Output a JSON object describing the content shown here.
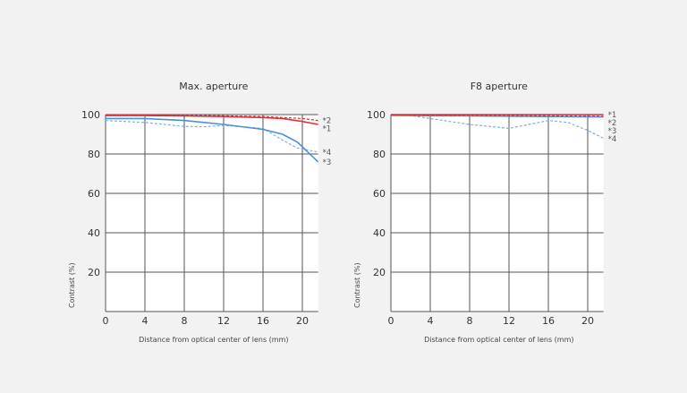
{
  "chart_data": [
    {
      "type": "line",
      "title": "Max. aperture",
      "xlabel": "Distance from optical center of lens (mm)",
      "ylabel": "Contrast (%)",
      "xlim": [
        0,
        21.6
      ],
      "ylim": [
        0,
        100
      ],
      "xticks": [
        0,
        4,
        8,
        12,
        16,
        20
      ],
      "yticks": [
        20,
        40,
        60,
        80,
        100
      ],
      "grid": true,
      "series": [
        {
          "name": "*1",
          "color": "#e0313a",
          "dash": false,
          "points": [
            [
              0,
              99.5
            ],
            [
              4,
              99.5
            ],
            [
              8,
              99.3
            ],
            [
              12,
              99
            ],
            [
              16,
              98.5
            ],
            [
              18,
              98
            ],
            [
              20,
              96.5
            ],
            [
              21.6,
              95
            ]
          ]
        },
        {
          "name": "*2",
          "color": "#e0313a",
          "dash": true,
          "points": [
            [
              0,
              99.8
            ],
            [
              4,
              99.8
            ],
            [
              8,
              99.6
            ],
            [
              12,
              99.4
            ],
            [
              16,
              99
            ],
            [
              20,
              98
            ],
            [
              21.6,
              97
            ]
          ]
        },
        {
          "name": "*3",
          "color": "#4a8fd8",
          "dash": false,
          "points": [
            [
              0,
              98
            ],
            [
              4,
              98
            ],
            [
              8,
              97
            ],
            [
              12,
              95
            ],
            [
              16,
              92.5
            ],
            [
              18,
              90
            ],
            [
              19.5,
              86
            ],
            [
              21.6,
              76
            ]
          ]
        },
        {
          "name": "*4",
          "color": "#7fb0e6",
          "dash": true,
          "points": [
            [
              0,
              97
            ],
            [
              4,
              96
            ],
            [
              8,
              94
            ],
            [
              10,
              93.8
            ],
            [
              12,
              94.5
            ],
            [
              16,
              93
            ],
            [
              18,
              87
            ],
            [
              19.5,
              83
            ],
            [
              21.6,
              81
            ]
          ]
        }
      ]
    },
    {
      "type": "line",
      "title": "F8 aperture",
      "xlabel": "Distance from optical center of lens (mm)",
      "ylabel": "Contrast (%)",
      "xlim": [
        0,
        21.6
      ],
      "ylim": [
        0,
        100
      ],
      "xticks": [
        0,
        4,
        8,
        12,
        16,
        20
      ],
      "yticks": [
        20,
        40,
        60,
        80,
        100
      ],
      "grid": true,
      "series": [
        {
          "name": "*1",
          "color": "#e0313a",
          "dash": false,
          "points": [
            [
              0,
              100
            ],
            [
              8,
              100
            ],
            [
              16,
              100
            ],
            [
              21.6,
              100
            ]
          ]
        },
        {
          "name": "*2",
          "color": "#e0313a",
          "dash": true,
          "points": [
            [
              0,
              99.8
            ],
            [
              8,
              99.6
            ],
            [
              16,
              99.4
            ],
            [
              21.6,
              99.2
            ]
          ]
        },
        {
          "name": "*3",
          "color": "#4a8fd8",
          "dash": false,
          "points": [
            [
              0,
              99.6
            ],
            [
              8,
              99.3
            ],
            [
              16,
              99
            ],
            [
              21.6,
              98.8
            ]
          ]
        },
        {
          "name": "*4",
          "color": "#7fb0e6",
          "dash": true,
          "points": [
            [
              0,
              100
            ],
            [
              2,
              99.5
            ],
            [
              4,
              98
            ],
            [
              8,
              95
            ],
            [
              12,
              93
            ],
            [
              14,
              95
            ],
            [
              16,
              97
            ],
            [
              18,
              96
            ],
            [
              20,
              92
            ],
            [
              21.6,
              88
            ]
          ]
        }
      ]
    }
  ]
}
